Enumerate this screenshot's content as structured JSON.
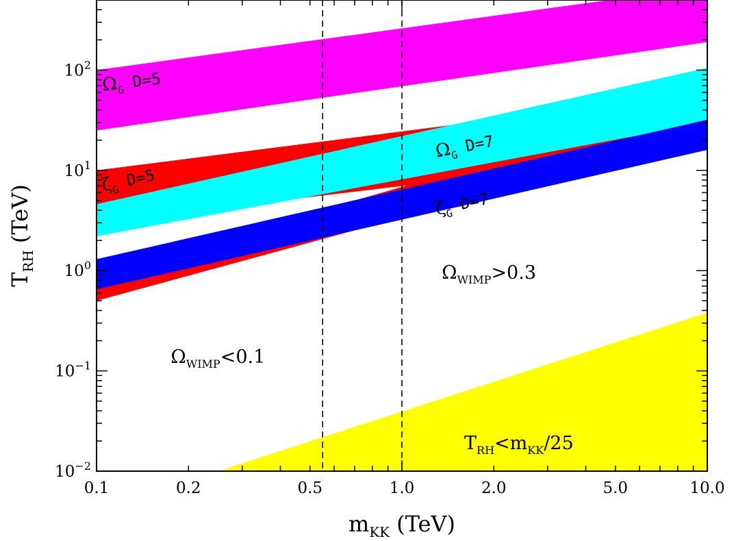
{
  "chart_data": {
    "type": "area",
    "x_scale": "log",
    "y_scale": "log",
    "xlim": [
      0.1,
      10.0
    ],
    "ylim": [
      0.01,
      500
    ],
    "xlabel": {
      "main": "m",
      "sub": "KK",
      "unit": " (TeV)"
    },
    "ylabel": {
      "main": "T",
      "sub": "RH",
      "unit": " (TeV)"
    },
    "x_ticks": [
      {
        "value": 0.1,
        "label": "0.1"
      },
      {
        "value": 0.2,
        "label": "0.2"
      },
      {
        "value": 0.5,
        "label": "0.5"
      },
      {
        "value": 1.0,
        "label": "1.0"
      },
      {
        "value": 2.0,
        "label": "2.0"
      },
      {
        "value": 5.0,
        "label": "5.0"
      },
      {
        "value": 10.0,
        "label": "10.0"
      }
    ],
    "y_ticks": [
      {
        "value": 0.01,
        "base": "10",
        "exp": "−2"
      },
      {
        "value": 0.1,
        "base": "10",
        "exp": "−1"
      },
      {
        "value": 1,
        "base": "10",
        "exp": "0"
      },
      {
        "value": 10,
        "base": "10",
        "exp": "1"
      },
      {
        "value": 100,
        "base": "10",
        "exp": "2"
      }
    ],
    "vertical_lines": [
      {
        "x": 0.55,
        "style": "dashed"
      },
      {
        "x": 1.0,
        "style": "dashed"
      }
    ],
    "bands": [
      {
        "name": "ζ_G D=5",
        "color": "#ff0000",
        "x": [
          0.1,
          2.0
        ],
        "lower": [
          3.0,
          9.0
        ],
        "upper": [
          10.0,
          32.0
        ]
      },
      {
        "name": "Ω_G D=5",
        "color": "#ff00ff",
        "x": [
          0.1,
          10.0
        ],
        "lower": [
          25.0,
          190.0
        ],
        "upper": [
          100.0,
          680.0
        ]
      },
      {
        "name": "Ω_G D=7",
        "color": "#00ffff",
        "x": [
          0.1,
          10.0
        ],
        "lower": [
          2.2,
          30.0
        ],
        "upper": [
          4.6,
          105.0
        ]
      },
      {
        "name": "ζ_G D=7",
        "color": "#0000ff",
        "x": [
          0.1,
          10.0
        ],
        "lower": [
          0.65,
          16.0
        ],
        "upper": [
          1.3,
          32.0
        ]
      },
      {
        "name": "ζ_G D=5 overlay",
        "color": "#ff0000",
        "x": [
          0.1,
          10.0
        ],
        "lower": [
          0.5,
          23.0
        ],
        "upper": [
          0.9,
          52.0
        ],
        "clip": "right-of-cyan-only"
      }
    ],
    "regions": [
      {
        "name": "T_RH<m_KK/25",
        "color": "#ffff00",
        "x": [
          0.25,
          10.0
        ],
        "boundary": [
          0.01,
          0.38
        ]
      }
    ],
    "band_labels": [
      {
        "greek": "Ω",
        "sub": "G",
        "text": " D=5",
        "x": 0.105,
        "y": 62,
        "rotate": -7
      },
      {
        "greek": "ζ",
        "sub": "G",
        "text": " D=5",
        "x": 0.105,
        "y": 6.2,
        "rotate": -12
      },
      {
        "greek": "Ω",
        "sub": "G",
        "text": " D=7",
        "x": 1.3,
        "y": 13.5,
        "rotate": -11
      },
      {
        "greek": "ζ",
        "sub": "G",
        "text": " D=7",
        "x": 1.3,
        "y": 3.6,
        "rotate": -12
      }
    ],
    "region_labels": [
      {
        "main": "Ω",
        "sub": "WIMP",
        "text": ">0.3",
        "x": 1.35,
        "y": 0.83
      },
      {
        "main": "Ω",
        "sub": "WIMP",
        "text": "<0.1",
        "x": 0.175,
        "y": 0.12
      },
      {
        "main": "T",
        "sub": "RH",
        "text": "<m",
        "sub2": "KK",
        "text2": "/25",
        "x": 1.6,
        "y": 0.0165
      }
    ]
  }
}
